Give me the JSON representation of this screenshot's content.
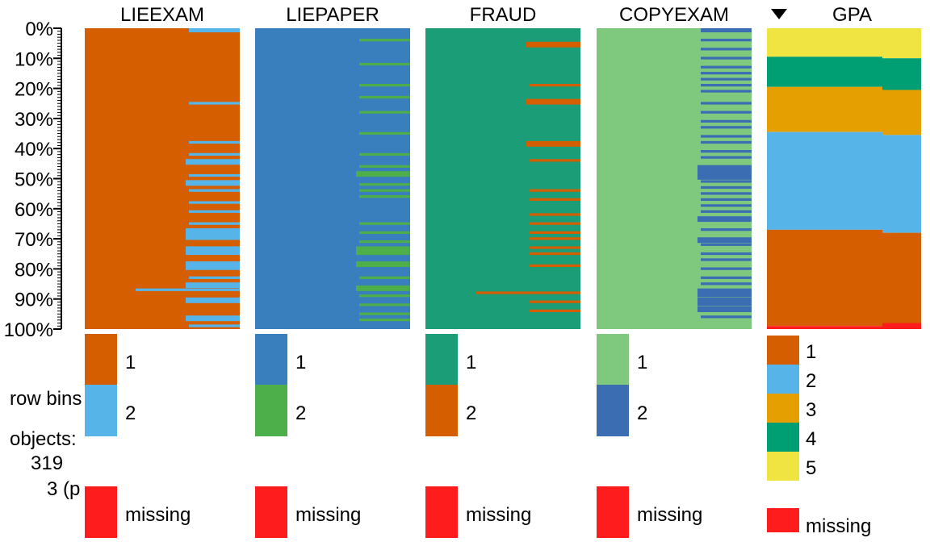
{
  "side": {
    "row_bins_label": "row bins:",
    "objects_label": "objects:",
    "objects_value": "319",
    "objects_note": "3 (p"
  },
  "axis": {
    "ticks": [
      "0%",
      "10%",
      "20%",
      "30%",
      "40%",
      "50%",
      "60%",
      "70%",
      "80%",
      "90%",
      "100%"
    ]
  },
  "colors": {
    "orange": "#d55e00",
    "sky": "#56b4e9",
    "blue": "#3a7fbd",
    "green": "#4daf4a",
    "teal": "#1b9e77",
    "lightgreen": "#7fc97f",
    "darkblue": "#3b6db3",
    "yellow": "#f0e442",
    "bluishgreen": "#009e73",
    "amber": "#e69f00",
    "missing": "#ff1c1c"
  },
  "chart_data": {
    "type": "tableplot",
    "sort_column": "GPA",
    "sort_direction": "descending",
    "y_axis": {
      "unit": "% of rows",
      "range": [
        0,
        100
      ]
    },
    "variables": [
      {
        "name": "LIEEXAM",
        "categories": [
          {
            "label": "1",
            "color": "#d55e00"
          },
          {
            "label": "2",
            "color": "#56b4e9"
          }
        ],
        "missing_label": "missing",
        "missing_color": "#ff1c1c",
        "overall_share_category_2_pct": 8,
        "rows_with_category_2_pct": [
          [
            0,
            1.5
          ],
          [
            24.5,
            25.5
          ],
          [
            37.5,
            38.5
          ],
          [
            41.5,
            42.5
          ],
          [
            43.5,
            45.5
          ],
          [
            48.5,
            49.5
          ],
          [
            50.5,
            52.5
          ],
          [
            53.5,
            54.5
          ],
          [
            57.5,
            58.5
          ],
          [
            60.5,
            61.5
          ],
          [
            64.5,
            65.5
          ],
          [
            66.5,
            70.5
          ],
          [
            72.5,
            75.5
          ],
          [
            77.5,
            80.5
          ],
          [
            82.5,
            83.5
          ],
          [
            84.5,
            86.5
          ],
          [
            86.5,
            87.5
          ],
          [
            89.5,
            91.5
          ],
          [
            95.5,
            97.5
          ],
          [
            98.5,
            99.5
          ]
        ]
      },
      {
        "name": "LIEPAPER",
        "categories": [
          {
            "label": "1",
            "color": "#3a7fbd"
          },
          {
            "label": "2",
            "color": "#4daf4a"
          }
        ],
        "missing_label": "missing",
        "missing_color": "#ff1c1c",
        "overall_share_category_2_pct": 8,
        "rows_with_category_2_pct": [
          [
            3.5,
            4.5
          ],
          [
            11.5,
            12.5
          ],
          [
            18.5,
            19.5
          ],
          [
            22.5,
            23.5
          ],
          [
            27.5,
            28.5
          ],
          [
            34.5,
            35.5
          ],
          [
            41.5,
            42.5
          ],
          [
            45.5,
            46.5
          ],
          [
            47.5,
            49.5
          ],
          [
            51.5,
            52.5
          ],
          [
            53.5,
            54.5
          ],
          [
            55.5,
            56.5
          ],
          [
            64.5,
            65.5
          ],
          [
            67.5,
            68.5
          ],
          [
            70.5,
            71.5
          ],
          [
            72.5,
            75.5
          ],
          [
            77.5,
            79.5
          ],
          [
            82.5,
            83.5
          ],
          [
            85.5,
            87.5
          ],
          [
            88.5,
            89.5
          ],
          [
            91.5,
            92.5
          ],
          [
            94.5,
            95.5
          ],
          [
            96.5,
            97.5
          ]
        ]
      },
      {
        "name": "FRAUD",
        "categories": [
          {
            "label": "1",
            "color": "#1b9e77"
          },
          {
            "label": "2",
            "color": "#d55e00"
          }
        ],
        "missing_label": "missing",
        "missing_color": "#ff1c1c",
        "overall_share_category_2_pct": 5,
        "rows_with_category_2_pct": [
          [
            4.5,
            6.5
          ],
          [
            18.5,
            19.5
          ],
          [
            23.5,
            25.5
          ],
          [
            37.5,
            39.5
          ],
          [
            43.5,
            44.5
          ],
          [
            53.5,
            54.5
          ],
          [
            56.5,
            57.5
          ],
          [
            61.5,
            62.5
          ],
          [
            64.5,
            65.5
          ],
          [
            67.5,
            68.5
          ],
          [
            69.5,
            70.5
          ],
          [
            72.5,
            73.5
          ],
          [
            74.5,
            75.5
          ],
          [
            78.5,
            79.5
          ],
          [
            87.5,
            88.5
          ],
          [
            90.5,
            91.5
          ],
          [
            93.5,
            94.5
          ]
        ]
      },
      {
        "name": "COPYEXAM",
        "categories": [
          {
            "label": "1",
            "color": "#7fc97f"
          },
          {
            "label": "2",
            "color": "#3b6db3"
          }
        ],
        "missing_label": "missing",
        "missing_color": "#ff1c1c",
        "overall_share_category_2_pct": 20,
        "rows_with_category_2_pct": [
          [
            0,
            1.5
          ],
          [
            3.5,
            4.5
          ],
          [
            6.5,
            7.5
          ],
          [
            9.5,
            10.5
          ],
          [
            12.5,
            13.5
          ],
          [
            14.5,
            15.5
          ],
          [
            16.5,
            17.5
          ],
          [
            18.5,
            19.5
          ],
          [
            20.5,
            21.5
          ],
          [
            24.5,
            25.5
          ],
          [
            27.5,
            28.5
          ],
          [
            30.5,
            31.5
          ],
          [
            32.5,
            33.5
          ],
          [
            35.5,
            36.5
          ],
          [
            37.5,
            38.5
          ],
          [
            40.5,
            41.5
          ],
          [
            42.5,
            43.5
          ],
          [
            45.5,
            50.5
          ],
          [
            50.5,
            51.5
          ],
          [
            52.5,
            53.5
          ],
          [
            54.5,
            55.5
          ],
          [
            56.5,
            57.5
          ],
          [
            58.5,
            59.5
          ],
          [
            60.5,
            61.5
          ],
          [
            62.5,
            64.5
          ],
          [
            66.5,
            67.5
          ],
          [
            69.5,
            71.5
          ],
          [
            71.5,
            72.5
          ],
          [
            74.5,
            75.5
          ],
          [
            76.5,
            77.5
          ],
          [
            79.5,
            80.5
          ],
          [
            82.5,
            83.5
          ],
          [
            84.5,
            85.5
          ],
          [
            86.5,
            89.5
          ],
          [
            89.5,
            92.5
          ],
          [
            92.5,
            94.5
          ],
          [
            95.5,
            96.5
          ]
        ]
      },
      {
        "name": "GPA",
        "sorted": true,
        "categories": [
          {
            "label": "1",
            "color": "#d55e00"
          },
          {
            "label": "2",
            "color": "#56b4e9"
          },
          {
            "label": "3",
            "color": "#e69f00"
          },
          {
            "label": "4",
            "color": "#009e73"
          },
          {
            "label": "5",
            "color": "#f0e442"
          }
        ],
        "missing_label": "missing",
        "missing_color": "#ff1c1c",
        "stack_order_top_to_bottom": [
          "5",
          "4",
          "3",
          "2",
          "1",
          "missing"
        ],
        "cumulative_boundaries_pct": [
          {
            "after": "5",
            "left": 9.5,
            "right": 10
          },
          {
            "after": "4",
            "left": 19.5,
            "right": 20.5
          },
          {
            "after": "3",
            "left": 34.5,
            "right": 35.5
          },
          {
            "after": "2",
            "left": 67,
            "right": 68
          },
          {
            "after": "1",
            "left": 99,
            "right": 98
          }
        ]
      }
    ]
  }
}
